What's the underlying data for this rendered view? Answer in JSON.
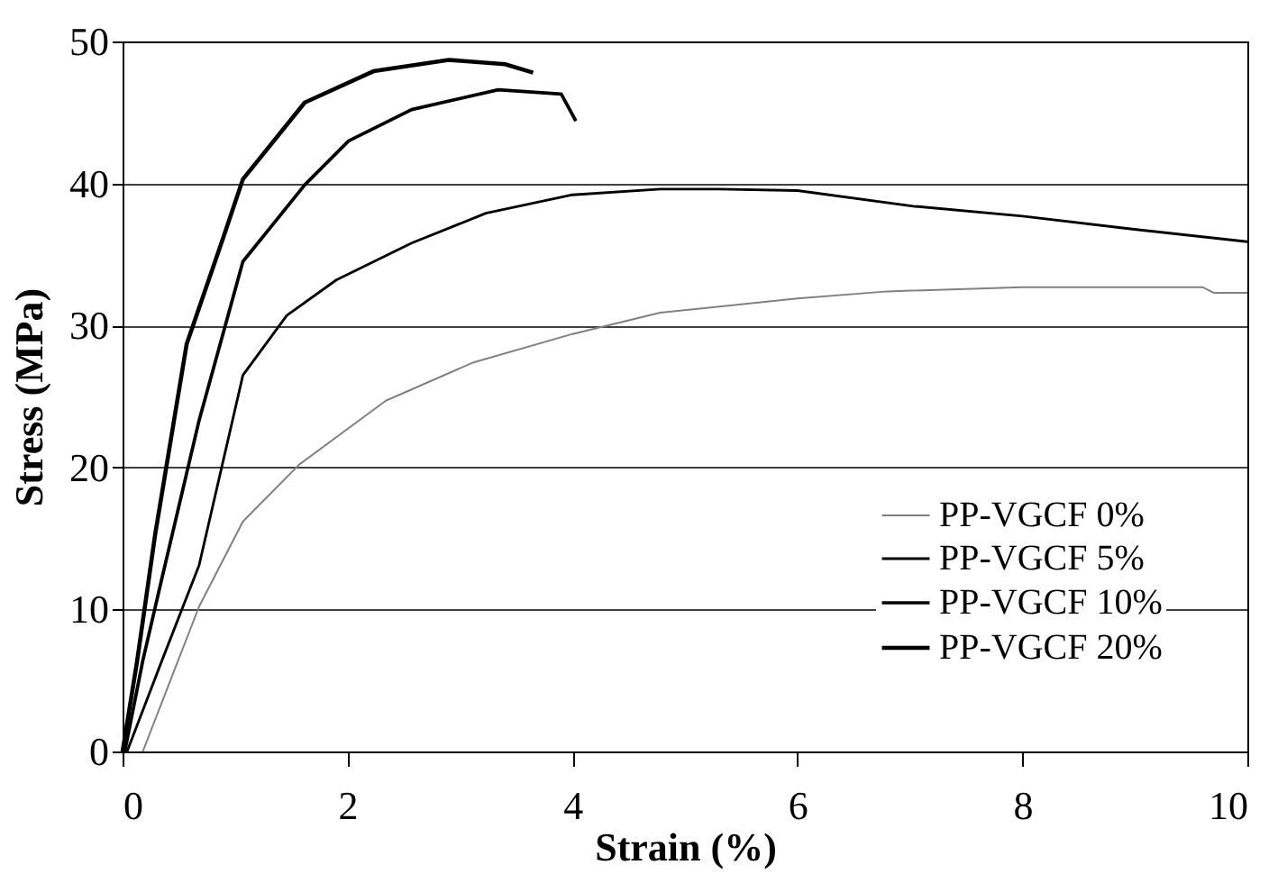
{
  "chart_data": {
    "type": "line",
    "xlabel": "Strain (%)",
    "ylabel": "Stress (MPa)",
    "xlim": [
      0,
      10
    ],
    "ylim": [
      0,
      50
    ],
    "xticks": [
      0,
      2,
      4,
      6,
      8,
      10
    ],
    "yticks": [
      0,
      10,
      20,
      30,
      40,
      50
    ],
    "grid": "y",
    "legend": "bottom right",
    "marker": "none",
    "line_style": "solid",
    "series": [
      {
        "name": "PP-VGCF 0%",
        "color": "#808080",
        "x": [
          0.18,
          0.68,
          1.07,
          1.57,
          2.34,
          3.12,
          4.0,
          4.78,
          6.0,
          6.8,
          8.0,
          9.6,
          9.7,
          10.0
        ],
        "values": [
          0,
          10.2,
          16.2,
          20.2,
          24.7,
          27.4,
          29.4,
          30.9,
          31.9,
          32.4,
          32.7,
          32.7,
          32.3,
          32.3
        ]
      },
      {
        "name": "PP-VGCF 5%",
        "color": "#000000",
        "x": [
          0.04,
          0.35,
          0.68,
          1.07,
          1.46,
          1.9,
          2.57,
          3.23,
          4.0,
          4.78,
          5.3,
          6.0,
          7.03,
          8.0,
          8.96,
          10.0
        ],
        "values": [
          0,
          6.4,
          13.1,
          26.5,
          30.7,
          33.2,
          35.8,
          37.9,
          39.2,
          39.6,
          39.6,
          39.5,
          38.4,
          37.7,
          36.8,
          35.9
        ]
      },
      {
        "name": "PP-VGCF 10%",
        "color": "#000000",
        "x": [
          0.02,
          0.18,
          0.35,
          0.68,
          1.07,
          1.62,
          2.01,
          2.57,
          3.34,
          3.9,
          4.03
        ],
        "values": [
          0,
          6.4,
          12.2,
          23.3,
          34.5,
          39.9,
          43,
          45.2,
          46.6,
          46.3,
          44.4
        ]
      },
      {
        "name": "PP-VGCF 20%",
        "color": "#000000",
        "x": [
          0,
          0.13,
          0.29,
          0.57,
          0.9,
          1.07,
          1.62,
          2.23,
          2.9,
          3.4,
          3.65
        ],
        "values": [
          0,
          6.4,
          15.3,
          28.7,
          36.3,
          40.3,
          45.7,
          47.9,
          48.7,
          48.4,
          47.8
        ]
      }
    ]
  }
}
